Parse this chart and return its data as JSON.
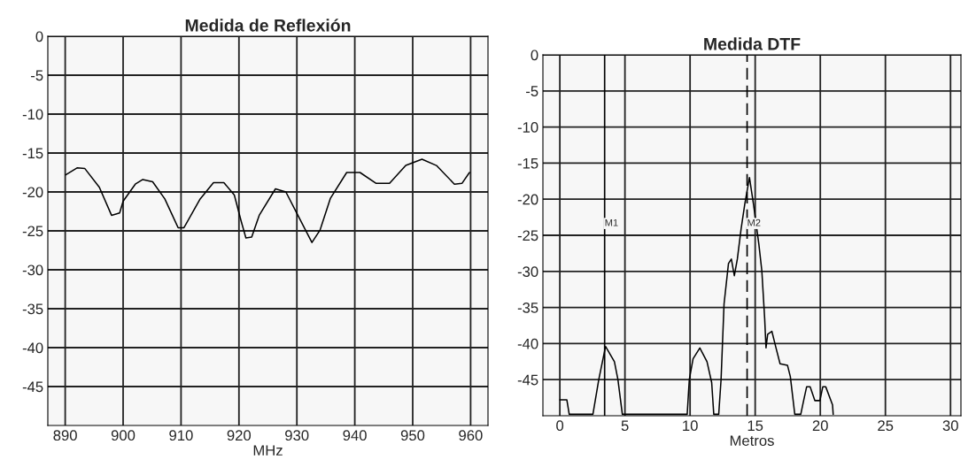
{
  "chart_data": [
    {
      "type": "line",
      "title": "Medida de Reflexión",
      "xlabel": "MHz",
      "xlim": [
        887,
        963
      ],
      "xticks": [
        890,
        900,
        910,
        920,
        930,
        940,
        950,
        960
      ],
      "ylim": [
        -50,
        0
      ],
      "yticks": [
        0,
        -5,
        -10,
        -15,
        -20,
        -25,
        -30,
        -35,
        -40,
        -45
      ],
      "grid": true,
      "series": [
        {
          "color": "#000000",
          "x": [
            890.1,
            892.1,
            893.4,
            895.9,
            898.0,
            899.4,
            900.0,
            902.1,
            903.4,
            905.1,
            907.2,
            909.5,
            910.5,
            913.3,
            915.6,
            917.4,
            919.2,
            920.4,
            921.2,
            922.2,
            923.5,
            926.3,
            928.1,
            929.9,
            932.6,
            934.0,
            935.8,
            938.6,
            940.9,
            943.7,
            946.0,
            948.8,
            951.6,
            954.1,
            957.2,
            958.5,
            959.8
          ],
          "values": [
            -17.8,
            -16.9,
            -17.0,
            -19.4,
            -23.0,
            -22.7,
            -21.2,
            -19.0,
            -18.4,
            -18.7,
            -20.9,
            -24.6,
            -24.6,
            -20.9,
            -18.8,
            -18.8,
            -20.4,
            -23.8,
            -25.9,
            -25.8,
            -23.0,
            -19.6,
            -20.0,
            -22.6,
            -26.5,
            -24.9,
            -20.8,
            -17.5,
            -17.5,
            -18.9,
            -18.9,
            -16.6,
            -15.8,
            -16.6,
            -19.0,
            -18.9,
            -17.5
          ]
        }
      ]
    },
    {
      "type": "line",
      "title": "Medida DTF",
      "xlabel": "Metros",
      "xlim": [
        -1.3,
        30.8
      ],
      "xticks": [
        0,
        5,
        10,
        15,
        20,
        25,
        30
      ],
      "ylim": [
        -50,
        0
      ],
      "yticks": [
        0,
        -5,
        -10,
        -15,
        -20,
        -25,
        -30,
        -35,
        -40,
        -45
      ],
      "grid": true,
      "ref_lines": [
        {
          "axis": "x",
          "value": 3.44,
          "label": "M1",
          "line_style": "solid"
        },
        {
          "axis": "x",
          "value": 14.38,
          "label": "M2",
          "line_style": "dashed"
        }
      ],
      "series": [
        {
          "color": "#000000",
          "x": [
            0,
            0.54,
            0.72,
            2.54,
            2.99,
            3.51,
            4.19,
            4.46,
            4.8,
            9.78,
            9.94,
            10.23,
            10.75,
            11.3,
            11.66,
            11.82,
            12.2,
            12.38,
            12.61,
            12.95,
            13.17,
            13.4,
            13.63,
            13.92,
            14.2,
            14.56,
            14.87,
            15.28,
            15.51,
            15.73,
            15.83,
            15.96,
            16.28,
            16.57,
            16.91,
            17.48,
            17.7,
            18.04,
            18.5,
            18.72,
            18.95,
            19.22,
            19.58,
            19.97,
            20.19,
            20.42,
            20.94,
            20.99
          ],
          "values": [
            -47.8,
            -47.8,
            -49.8,
            -49.8,
            -45,
            -40.4,
            -42.5,
            -45,
            -49.8,
            -49.8,
            -45,
            -42.1,
            -40.6,
            -42.5,
            -45.4,
            -49.8,
            -49.8,
            -45,
            -34.5,
            -28.9,
            -28.3,
            -30.6,
            -28.3,
            -24.1,
            -20.7,
            -17.0,
            -20.7,
            -26.2,
            -29.9,
            -36.6,
            -40.6,
            -38.7,
            -38.3,
            -40.4,
            -42.8,
            -43,
            -44.6,
            -49.8,
            -49.8,
            -47.9,
            -46,
            -46,
            -47.9,
            -47.9,
            -46,
            -46,
            -48.5,
            -49.8
          ]
        }
      ]
    }
  ]
}
